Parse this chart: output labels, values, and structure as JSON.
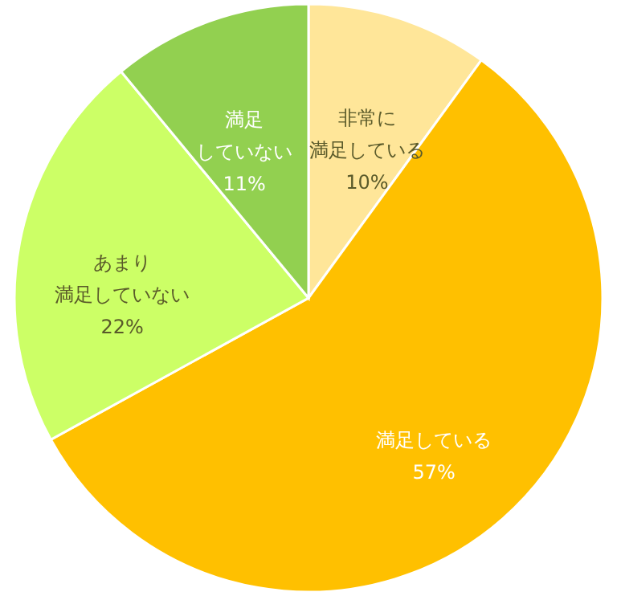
{
  "chart_data": {
    "type": "pie",
    "categories": [
      "非常に満足している",
      "満足している",
      "あまり満足していない",
      "満足していない"
    ],
    "values": [
      10,
      57,
      22,
      11
    ],
    "value_labels": [
      "10%",
      "57%",
      "22%",
      "11%"
    ],
    "colors": [
      "#ffe699",
      "#ffc000",
      "#ccff66",
      "#92d050"
    ],
    "legend": false
  }
}
